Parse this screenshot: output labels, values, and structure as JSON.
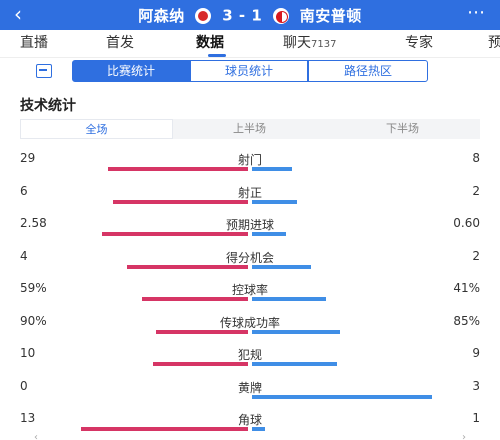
{
  "header": {
    "back_icon": "back-arrow-icon",
    "home_team": "阿森纳",
    "score": "3 - 1",
    "away_team": "南安普顿",
    "more_icon": "more-dots-icon",
    "colors": {
      "bar": "#2f6fe0"
    }
  },
  "tabs": [
    {
      "label": "直播"
    },
    {
      "label": "首发"
    },
    {
      "label": "数据",
      "active": true
    },
    {
      "label": "聊天",
      "count": "7137"
    },
    {
      "label": "专家"
    },
    {
      "label": "预"
    }
  ],
  "segments": [
    {
      "label": "比赛统计",
      "active": true
    },
    {
      "label": "球员统计"
    },
    {
      "label": "路径热区"
    }
  ],
  "section_title": "技术统计",
  "periods": [
    {
      "label": "全场",
      "active": true
    },
    {
      "label": "上半场"
    },
    {
      "label": "下半场"
    }
  ],
  "stats": [
    {
      "name": "射门",
      "left": "29",
      "right": "8",
      "lf": 0.78,
      "rf": 0.22
    },
    {
      "name": "射正",
      "left": "6",
      "right": "2",
      "lf": 0.75,
      "rf": 0.25
    },
    {
      "name": "预期进球",
      "left": "2.58",
      "right": "0.60",
      "lf": 0.81,
      "rf": 0.19
    },
    {
      "name": "得分机会",
      "left": "4",
      "right": "2",
      "lf": 0.67,
      "rf": 0.33
    },
    {
      "name": "控球率",
      "left": "59%",
      "right": "41%",
      "lf": 0.59,
      "rf": 0.41
    },
    {
      "name": "传球成功率",
      "left": "90%",
      "right": "85%",
      "lf": 0.51,
      "rf": 0.49
    },
    {
      "name": "犯规",
      "left": "10",
      "right": "9",
      "lf": 0.53,
      "rf": 0.47
    },
    {
      "name": "黄牌",
      "left": "0",
      "right": "3",
      "lf": 0.0,
      "rf": 1.0
    },
    {
      "name": "角球",
      "left": "13",
      "right": "1",
      "lf": 0.93,
      "rf": 0.07
    }
  ],
  "colors": {
    "home": "#d63565",
    "away": "#3f8ee6",
    "accent": "#2f6fe0"
  }
}
